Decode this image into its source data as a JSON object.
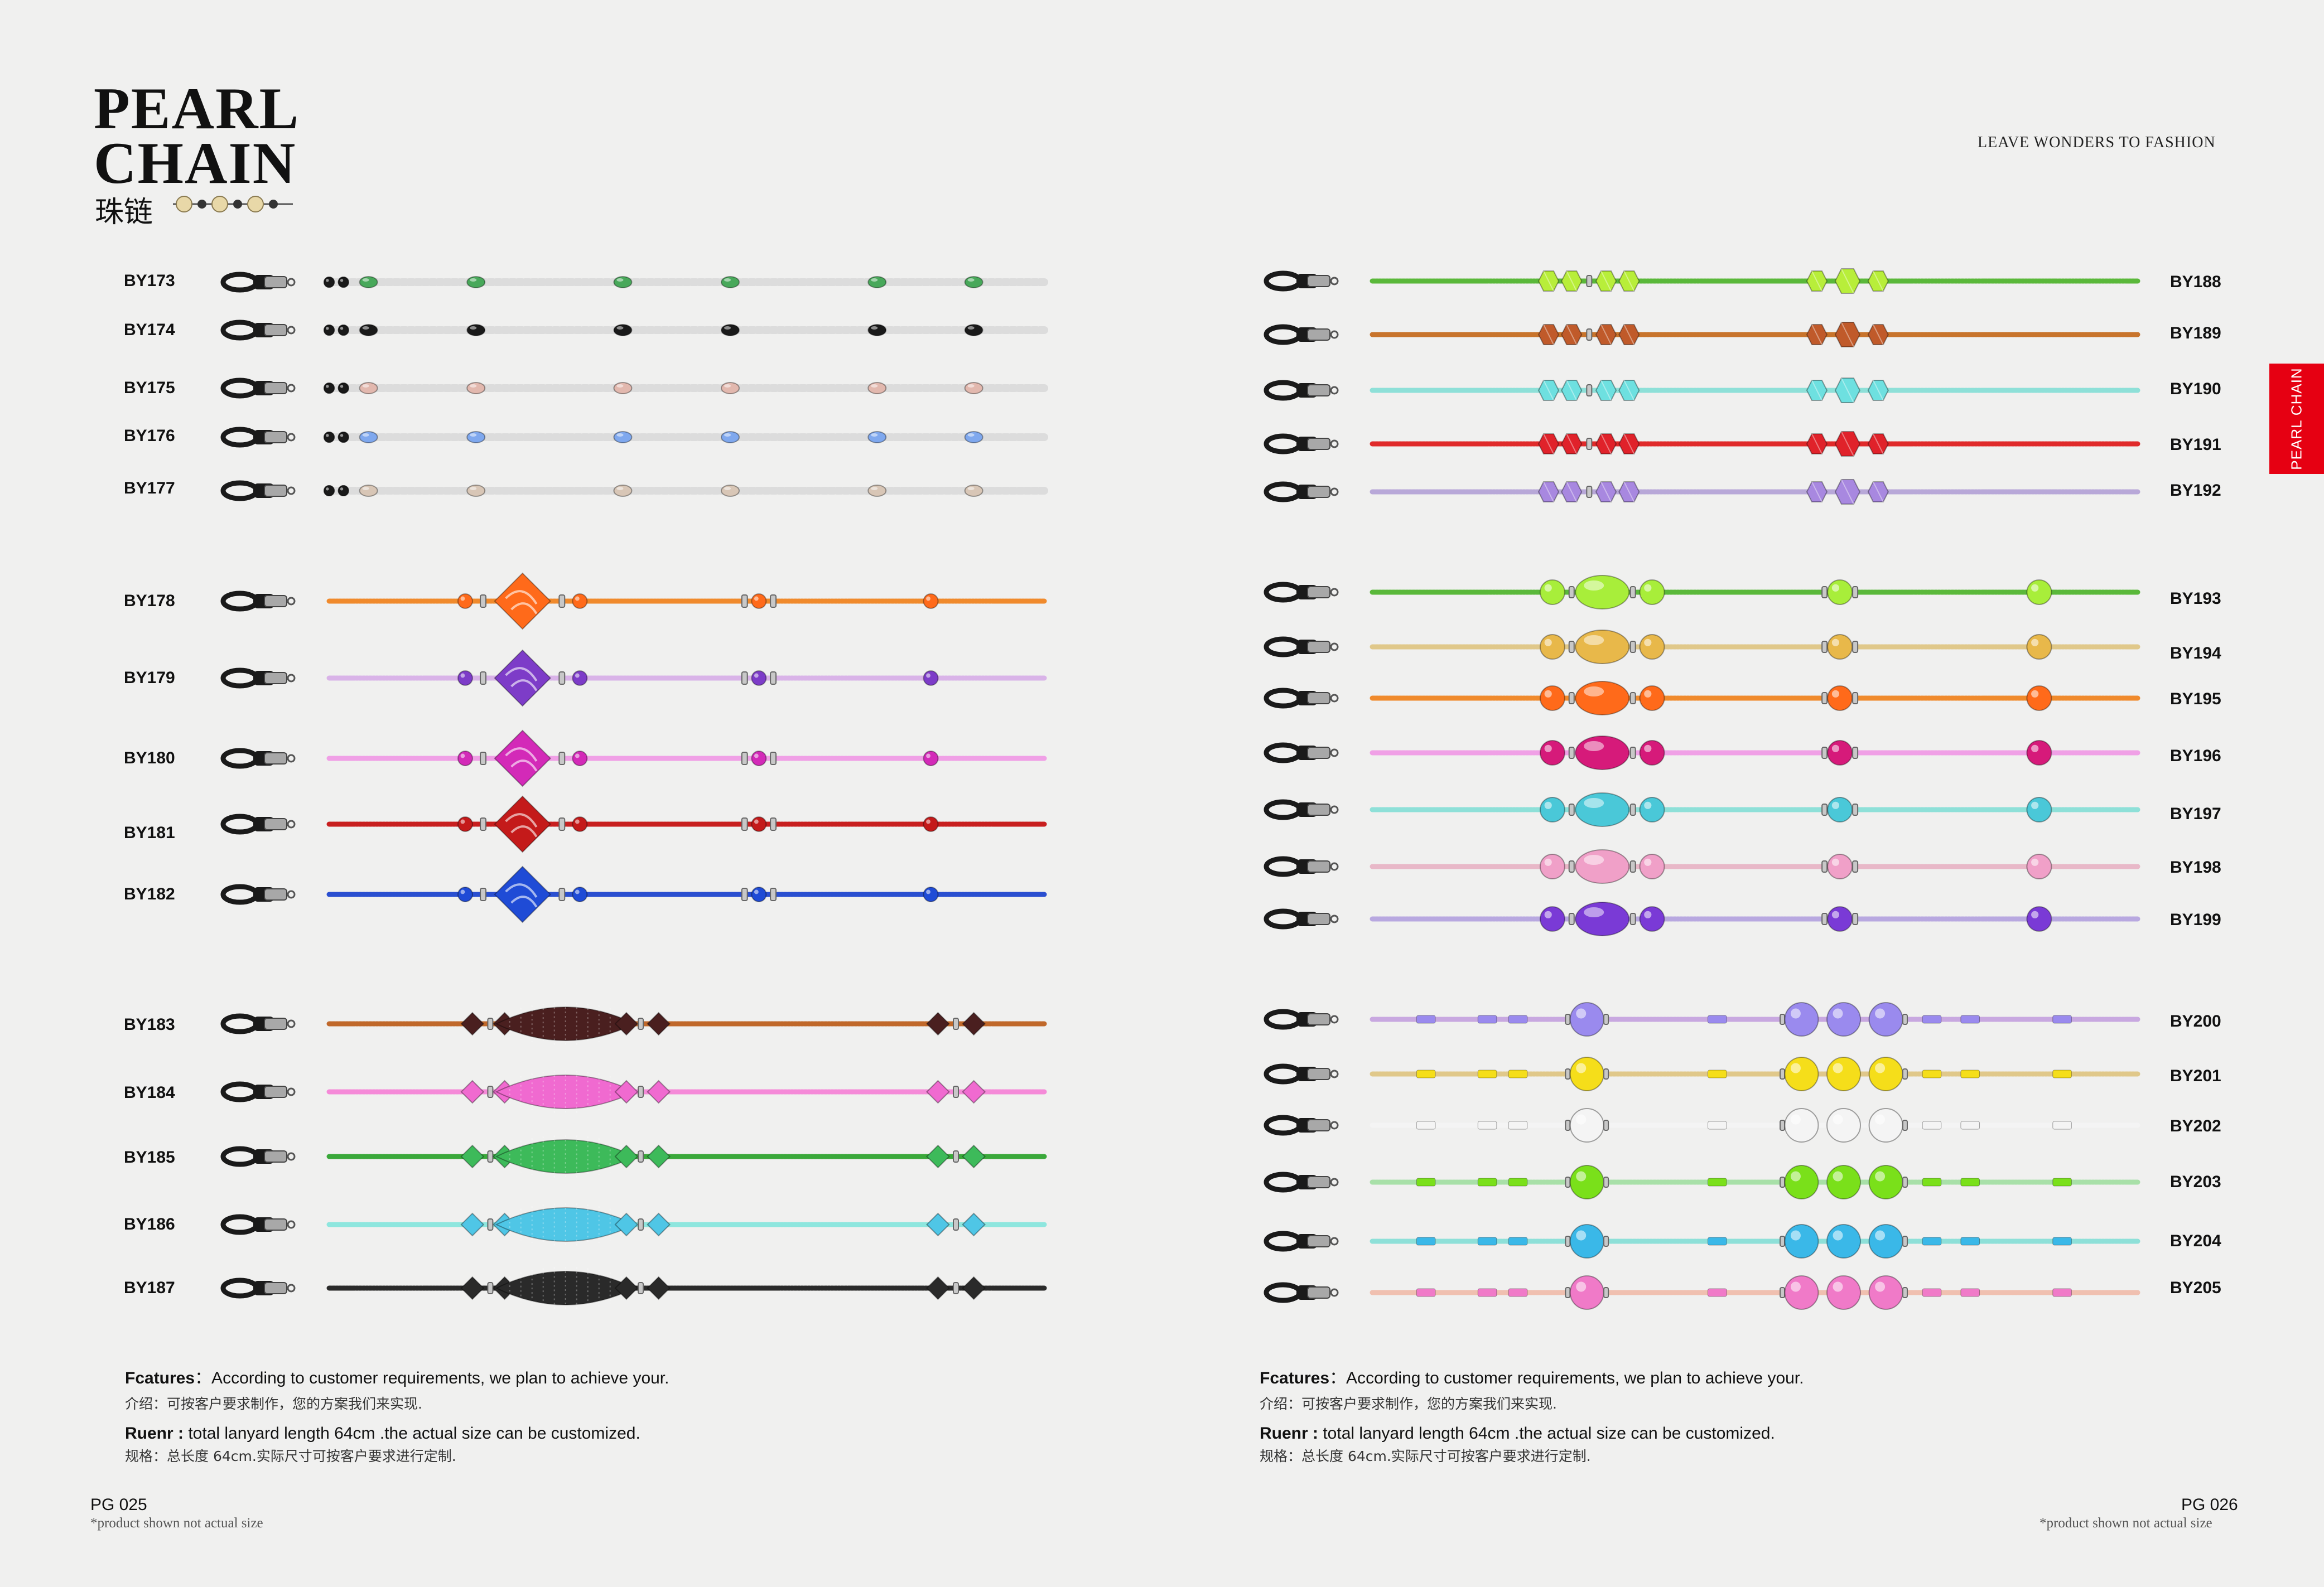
{
  "header": {
    "title_line1": "PEARL",
    "title_line2": "CHAIN",
    "title_cn": "珠链",
    "tagline": "LEAVE WONDERS TO FASHION",
    "side_tab": "PEARL CHAIN"
  },
  "colors": {
    "accent": "#e60012",
    "rubber_end": "#1a1a1a",
    "metal": "#9a9a9a"
  },
  "left_page": {
    "products": [
      {
        "code": "BY173",
        "cord": "#dcdcdc",
        "bead": "#48a85a",
        "style": "crystal"
      },
      {
        "code": "BY174",
        "cord": "#dcdcdc",
        "bead": "#1a1a1a",
        "style": "crystal"
      },
      {
        "code": "BY175",
        "cord": "#dcdcdc",
        "bead": "#e2b8ae",
        "style": "crystal"
      },
      {
        "code": "BY176",
        "cord": "#dcdcdc",
        "bead": "#7fa8ee",
        "style": "crystal"
      },
      {
        "code": "BY177",
        "cord": "#dcdcdc",
        "bead": "#d8c6b6",
        "style": "crystal"
      },
      {
        "code": "BY178",
        "cord": "#f08a2c",
        "bead": "#ff6a1a",
        "style": "diamond"
      },
      {
        "code": "BY179",
        "cord": "#d9b3e8",
        "bead": "#7d3cc8",
        "style": "diamond"
      },
      {
        "code": "BY180",
        "cord": "#f0a0e6",
        "bead": "#d32ab8",
        "style": "diamond"
      },
      {
        "code": "BY181",
        "cord": "#c81f1f",
        "bead": "#c41a1a",
        "style": "diamond"
      },
      {
        "code": "BY182",
        "cord": "#2a4fd0",
        "bead": "#1f4bd6",
        "style": "diamond"
      },
      {
        "code": "BY183",
        "cord": "#c0682a",
        "bead": "#4a1f1f",
        "style": "oval"
      },
      {
        "code": "BY184",
        "cord": "#f58ad8",
        "bead": "#f06ad0",
        "style": "oval"
      },
      {
        "code": "BY185",
        "cord": "#3aa83a",
        "bead": "#3dba5a",
        "style": "oval"
      },
      {
        "code": "BY186",
        "cord": "#8ee6de",
        "bead": "#4fc6e6",
        "style": "oval"
      },
      {
        "code": "BY187",
        "cord": "#2a2a2a",
        "bead": "#2a2a2a",
        "style": "oval"
      }
    ],
    "features_label": "Fcatures",
    "features_text": "：According to customer requirements, we plan to achieve your.",
    "intro_cn": "介绍：可按客户要求制作，您的方案我们来实现.",
    "ruenr_label": "Ruenr :",
    "ruenr_text": " total lanyard length 64cm .the actual size can be customized.",
    "spec_cn": "规格：总长度 64cm.实际尺寸可按客户要求进行定制.",
    "page_number": "PG 025",
    "note": "*product shown not actual size"
  },
  "right_page": {
    "products": [
      {
        "code": "BY188",
        "cord": "#5ab83a",
        "bead": "#b8ee3a",
        "style": "faceted"
      },
      {
        "code": "BY189",
        "cord": "#c8742c",
        "bead": "#c05a2a",
        "style": "faceted"
      },
      {
        "code": "BY190",
        "cord": "#8ee0d8",
        "bead": "#6ee0e0",
        "style": "faceted"
      },
      {
        "code": "BY191",
        "cord": "#e02a2a",
        "bead": "#e0222a",
        "style": "faceted"
      },
      {
        "code": "BY192",
        "cord": "#b8a8d8",
        "bead": "#a888e0",
        "style": "faceted"
      },
      {
        "code": "BY193",
        "cord": "#5ab83a",
        "bead": "#a8ee3a",
        "style": "round"
      },
      {
        "code": "BY194",
        "cord": "#e0c88a",
        "bead": "#e8b84a",
        "style": "round"
      },
      {
        "code": "BY195",
        "cord": "#f08a2c",
        "bead": "#ff6a1a",
        "style": "round"
      },
      {
        "code": "BY196",
        "cord": "#f0a0e6",
        "bead": "#d61a7a",
        "style": "round"
      },
      {
        "code": "BY197",
        "cord": "#8ee0d8",
        "bead": "#4ac8d8",
        "style": "round"
      },
      {
        "code": "BY198",
        "cord": "#e8b8c8",
        "bead": "#f0a0c8",
        "style": "round"
      },
      {
        "code": "BY199",
        "cord": "#b8a8e0",
        "bead": "#7a3ad6",
        "style": "round"
      },
      {
        "code": "BY200",
        "cord": "#c8a8e0",
        "bead": "#9a8aee",
        "style": "pearl"
      },
      {
        "code": "BY201",
        "cord": "#e0c88a",
        "bead": "#f5de1a",
        "style": "pearl"
      },
      {
        "code": "BY202",
        "cord": "#f4f4f4",
        "bead": "#f4f4f4",
        "style": "pearl"
      },
      {
        "code": "BY203",
        "cord": "#a8e0a8",
        "bead": "#7ae01a",
        "style": "pearl"
      },
      {
        "code": "BY204",
        "cord": "#8ee0d8",
        "bead": "#3ab8e8",
        "style": "pearl"
      },
      {
        "code": "BY205",
        "cord": "#f0c0b0",
        "bead": "#f07ac8",
        "style": "pearl"
      }
    ],
    "features_label": "Fcatures",
    "features_text": "：According to customer requirements, we plan to achieve your.",
    "intro_cn": "介绍：可按客户要求制作，您的方案我们来实现.",
    "ruenr_label": "Ruenr :",
    "ruenr_text": " total lanyard length 64cm .the actual size can be customized.",
    "spec_cn": "规格：总长度 64cm.实际尺寸可按客户要求进行定制.",
    "page_number": "PG 026",
    "note": "*product shown not actual size"
  }
}
